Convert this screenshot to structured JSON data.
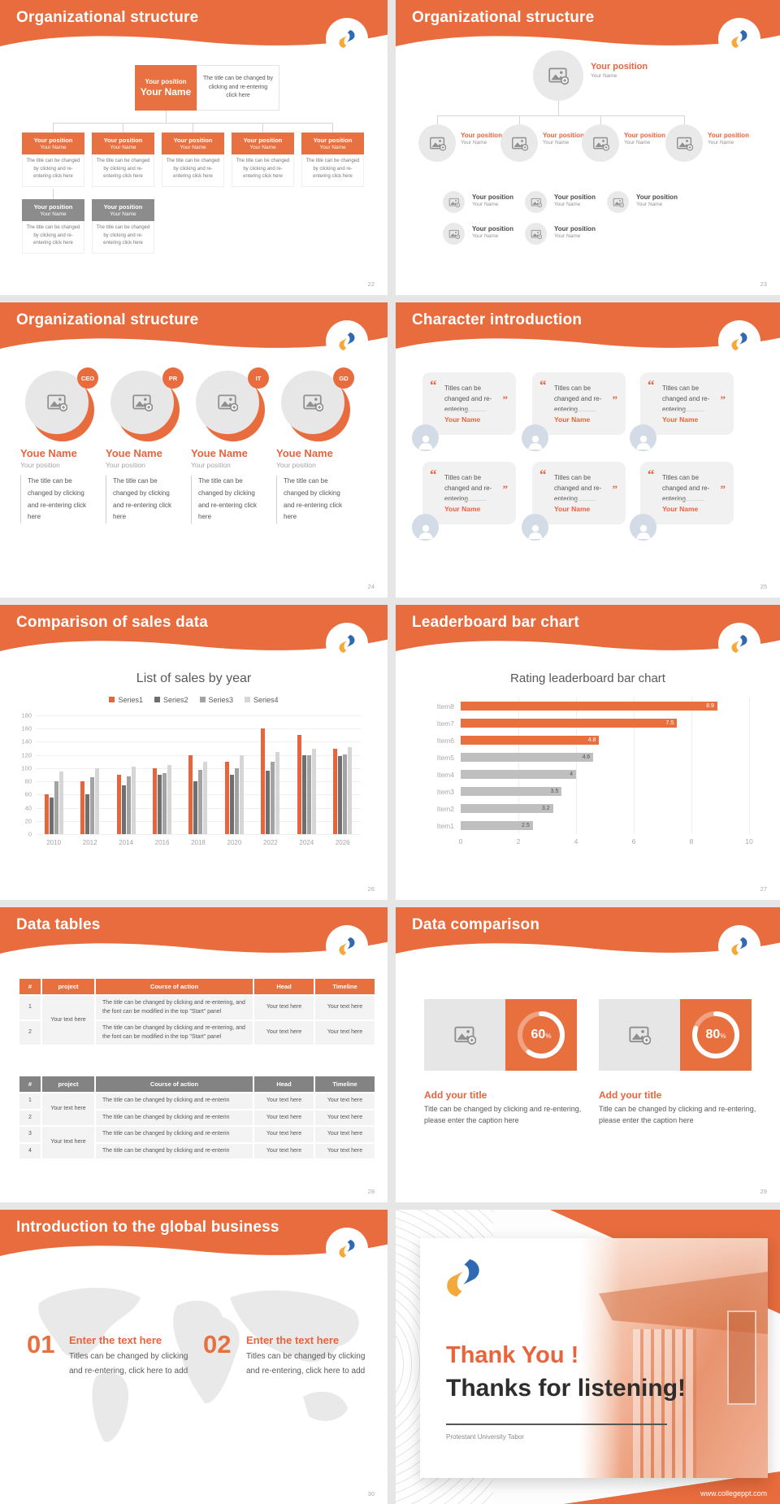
{
  "common": {
    "position": "Your position",
    "name": "Your Name",
    "desc": "The title can be changed by clicking and re-entering click here",
    "youe_name": "Youe Name"
  },
  "slides": {
    "s22": {
      "title": "Organizational structure",
      "page": "22",
      "top_note": "The title can be changed by clicking and re-entering click here"
    },
    "s23": {
      "title": "Organizational structure",
      "page": "23"
    },
    "s24": {
      "title": "Organizational structure",
      "page": "24",
      "badges": [
        "CEO",
        "PR",
        "IT",
        "GD"
      ],
      "desc": "The title can be changed by clicking and re-entering click here"
    },
    "s25": {
      "title": "Character introduction",
      "page": "25",
      "open_quote": "“",
      "close_quote": "”",
      "quote_text": "Titles can be changed and re-entering"
    },
    "s26": {
      "title": "Comparison of sales data",
      "page": "26"
    },
    "s27": {
      "title": "Leaderboard bar chart",
      "page": "27"
    },
    "s28": {
      "title": "Data tables",
      "page": "28",
      "table1": {
        "headers": [
          "#",
          "project",
          "Course of action",
          "Head",
          "Timeline"
        ],
        "project_merged": "Your text here",
        "rows": [
          {
            "num": "1",
            "action": "The title can be changed by clicking and re-entering, and the font can be modified in the top \"Start\" panel",
            "head": "Your text here",
            "timeline": "Your text here"
          },
          {
            "num": "2",
            "action": "The title can be changed by clicking and re-entering, and the font can be modified in the top \"Start\" panel",
            "head": "Your text here",
            "timeline": "Your text here"
          }
        ]
      },
      "table2": {
        "headers": [
          "#",
          "project",
          "Course of action",
          "Head",
          "Timeline"
        ],
        "project_merged_a": "Your text here",
        "project_merged_b": "Your text here",
        "rows": [
          {
            "num": "1",
            "action": "The title can be changed by clicking and re-enterin",
            "head": "Your text here",
            "timeline": "Your text here"
          },
          {
            "num": "2",
            "action": "The title can be changed by clicking and re-enterin",
            "head": "Your text here",
            "timeline": "Your text here"
          },
          {
            "num": "3",
            "action": "The title can be changed by clicking and re-enterin",
            "head": "Your text here",
            "timeline": "Your text here"
          },
          {
            "num": "4",
            "action": "The title can be changed by clicking and re-enterin",
            "head": "Your text here",
            "timeline": "Your text here"
          }
        ]
      }
    },
    "s29": {
      "title": "Data comparison",
      "page": "29",
      "pct_symbol": "%",
      "items": [
        {
          "percent": 60,
          "percent_label": "60",
          "heading": "Add your title",
          "caption": "Title can be changed by clicking and re-entering, please enter the caption here"
        },
        {
          "percent": 80,
          "percent_label": "80",
          "heading": "Add your title",
          "caption": "Title can be changed by clicking and re-entering, please enter the caption here"
        }
      ]
    },
    "s30": {
      "title": "Introduction to the global business",
      "page": "30",
      "items": [
        {
          "num": "01",
          "heading": "Enter the text here",
          "cap1": "Titles can be changed by clicking",
          "cap2": "and re-entering, click here to add"
        },
        {
          "num": "02",
          "heading": "Enter the text here",
          "cap1": "Titles can be changed by clicking",
          "cap2": "and re-entering, click here to add"
        }
      ]
    },
    "thanks": {
      "heading1": "Thank You !",
      "heading2": "Thanks for listening!",
      "subtitle": "Protestant University Tabor",
      "footer_url": "www.collegeppt.com"
    }
  },
  "chart_data": [
    {
      "type": "bar",
      "title": "List of sales by year",
      "categories": [
        "2010",
        "2012",
        "2014",
        "2016",
        "2018",
        "2020",
        "2022",
        "2024",
        "2026"
      ],
      "series": [
        {
          "name": "Series1",
          "color": "#e8643c",
          "values": [
            60,
            80,
            90,
            100,
            120,
            110,
            160,
            150,
            130
          ]
        },
        {
          "name": "Series2",
          "color": "#6f6f6f",
          "values": [
            55,
            60,
            74,
            90,
            80,
            90,
            96,
            120,
            118
          ]
        },
        {
          "name": "Series3",
          "color": "#a3a3a3",
          "values": [
            80,
            86,
            88,
            92,
            98,
            100,
            110,
            120,
            121
          ]
        },
        {
          "name": "Series4",
          "color": "#d6d6d6",
          "values": [
            95,
            100,
            102,
            105,
            110,
            120,
            125,
            130,
            132
          ]
        }
      ],
      "ylim": [
        0,
        180
      ],
      "yticks": [
        0,
        20,
        40,
        60,
        80,
        100,
        120,
        140,
        160,
        180
      ],
      "grid": true,
      "legend_position": "top"
    },
    {
      "type": "bar-horizontal",
      "title": "Rating leaderboard bar chart",
      "categories": [
        "Item8",
        "Item7",
        "Item6",
        "Item5",
        "Item4",
        "Item3",
        "Item2",
        "Item1"
      ],
      "values": [
        8.9,
        7.5,
        4.8,
        4.6,
        4,
        3.5,
        3.2,
        2.5
      ],
      "value_labels": [
        "8.9",
        "7.5",
        "4.8",
        "4.6",
        "4",
        "3.5",
        "3.2",
        "2.5"
      ],
      "bar_colors": [
        "#e8703f",
        "#e8703f",
        "#e8703f",
        "#bfbfbf",
        "#bfbfbf",
        "#bfbfbf",
        "#bfbfbf",
        "#bfbfbf"
      ],
      "label_colors": [
        "#ffffff",
        "#ffffff",
        "#ffffff",
        "#555555",
        "#555555",
        "#555555",
        "#555555",
        "#555555"
      ],
      "xlim": [
        0,
        10
      ],
      "xticks": [
        0,
        2,
        4,
        6,
        8,
        10
      ],
      "grid": true
    }
  ],
  "colors": {
    "accent_orange": "#e86c3e",
    "box_orange": "#e87141",
    "box_gray": "#8c8c8c",
    "logo_blue": "#2e69b2",
    "logo_yellow": "#f4a93b"
  }
}
